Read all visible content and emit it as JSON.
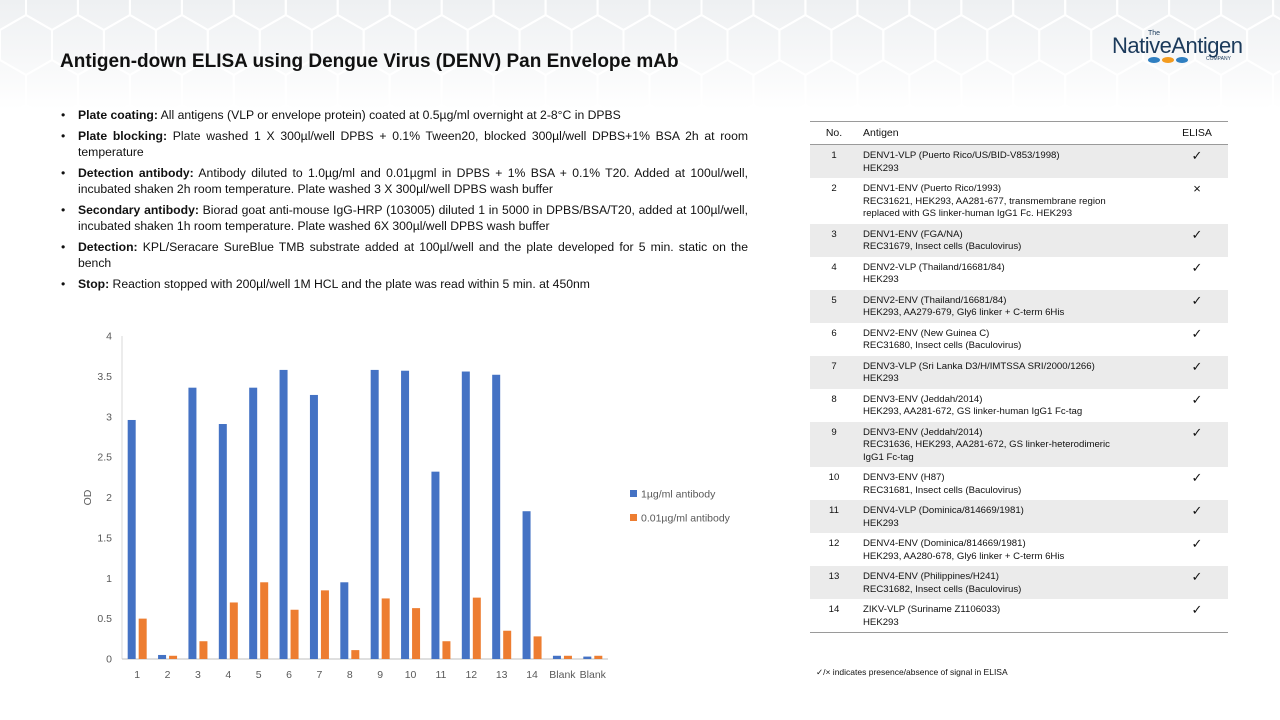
{
  "title": "Antigen-down ELISA using Dengue Virus (DENV) Pan Envelope mAb",
  "logo": {
    "the": "The",
    "name": "NativeAntigen",
    "company": "COMPANY"
  },
  "notes": [
    {
      "label": "Plate coating:",
      "text": "All antigens (VLP or envelope protein) coated at 0.5µg/ml overnight at 2-8°C in DPBS"
    },
    {
      "label": "Plate blocking:",
      "text": "Plate washed 1 X 300µl/well DPBS + 0.1% Tween20, blocked 300µl/well DPBS+1% BSA 2h at room temperature"
    },
    {
      "label": "Detection antibody:",
      "text": "Antibody diluted to 1.0µg/ml and 0.01µgml in DPBS + 1% BSA + 0.1% T20. Added at 100ul/well, incubated shaken 2h room temperature. Plate washed 3 X 300µl/well DPBS wash buffer"
    },
    {
      "label": "Secondary antibody:",
      "text": "Biorad goat anti-mouse IgG-HRP (103005) diluted 1 in 5000 in DPBS/BSA/T20, added at 100µl/well, incubated shaken 1h room temperature. Plate washed 6X 300µl/well DPBS wash buffer"
    },
    {
      "label": "Detection:",
      "text": "KPL/Seracare SureBlue TMB substrate added at 100µl/well and the plate developed for 5 min. static on the bench"
    },
    {
      "label": "Stop:",
      "text": "Reaction stopped with 200µl/well 1M HCL and the plate was read within 5 min. at 450nm"
    }
  ],
  "chart_data": {
    "type": "bar",
    "title": "",
    "xlabel": "",
    "ylabel": "OD",
    "ylim": [
      0,
      4
    ],
    "yticks": [
      0,
      0.5,
      1,
      1.5,
      2,
      2.5,
      3,
      3.5,
      4
    ],
    "ytick_labels": [
      "0",
      "0.5",
      "1",
      "1.5",
      "2",
      "2.5",
      "3",
      "3.5",
      "4"
    ],
    "grid": false,
    "legend_position": "right",
    "categories": [
      "1",
      "2",
      "3",
      "4",
      "5",
      "6",
      "7",
      "8",
      "9",
      "10",
      "11",
      "12",
      "13",
      "14",
      "Blank",
      "Blank"
    ],
    "series": [
      {
        "name": "1µg/ml antibody",
        "color": "#4472C4",
        "values": [
          2.96,
          0.05,
          3.36,
          2.91,
          3.36,
          3.58,
          3.27,
          0.95,
          3.58,
          3.57,
          2.32,
          3.56,
          3.52,
          1.83,
          0.04,
          0.03
        ]
      },
      {
        "name": "0.01µg/ml antibody",
        "color": "#ED7D31",
        "values": [
          0.5,
          0.04,
          0.22,
          0.7,
          0.95,
          0.61,
          0.85,
          0.11,
          0.75,
          0.63,
          0.22,
          0.76,
          0.35,
          0.28,
          0.04,
          0.04
        ]
      }
    ]
  },
  "table": {
    "headers": {
      "no": "No.",
      "antigen": "Antigen",
      "elisa": "ELISA"
    },
    "rows": [
      {
        "no": "1",
        "lines": [
          "DENV1-VLP (Puerto Rico/US/BID-V853/1998)",
          "HEK293"
        ],
        "elisa": "✓"
      },
      {
        "no": "2",
        "lines": [
          "DENV1-ENV (Puerto Rico/1993)",
          "REC31621, HEK293, AA281-677, transmembrane region",
          "replaced with GS linker-human IgG1 Fc. HEK293"
        ],
        "elisa": "×"
      },
      {
        "no": "3",
        "lines": [
          "DENV1-ENV (FGA/NA)",
          "REC31679, Insect cells (Baculovirus)"
        ],
        "elisa": "✓"
      },
      {
        "no": "4",
        "lines": [
          "DENV2-VLP (Thailand/16681/84)",
          "HEK293"
        ],
        "elisa": "✓"
      },
      {
        "no": "5",
        "lines": [
          "DENV2-ENV (Thailand/16681/84)",
          "HEK293, AA279-679, Gly6 linker + C-term 6His"
        ],
        "elisa": "✓"
      },
      {
        "no": "6",
        "lines": [
          "DENV2-ENV (New Guinea C)",
          "REC31680, Insect cells (Baculovirus)"
        ],
        "elisa": "✓"
      },
      {
        "no": "7",
        "lines": [
          "DENV3-VLP (Sri Lanka D3/H/IMTSSA SRI/2000/1266)",
          "HEK293"
        ],
        "elisa": "✓"
      },
      {
        "no": "8",
        "lines": [
          "DENV3-ENV (Jeddah/2014)",
          "HEK293, AA281-672, GS linker-human IgG1 Fc-tag"
        ],
        "elisa": "✓"
      },
      {
        "no": "9",
        "lines": [
          "DENV3-ENV (Jeddah/2014)",
          "REC31636, HEK293, AA281-672, GS linker-heterodimeric",
          "IgG1 Fc-tag"
        ],
        "elisa": "✓"
      },
      {
        "no": "10",
        "lines": [
          "DENV3-ENV (H87)",
          "REC31681, Insect cells (Baculovirus)"
        ],
        "elisa": "✓"
      },
      {
        "no": "11",
        "lines": [
          "DENV4-VLP (Dominica/814669/1981)",
          "HEK293"
        ],
        "elisa": "✓"
      },
      {
        "no": "12",
        "lines": [
          "DENV4-ENV (Dominica/814669/1981)",
          "HEK293, AA280-678, Gly6 linker + C-term 6His"
        ],
        "elisa": "✓"
      },
      {
        "no": "13",
        "lines": [
          "DENV4-ENV (Philippines/H241)",
          "REC31682, Insect cells (Baculovirus)"
        ],
        "elisa": "✓"
      },
      {
        "no": "14",
        "lines": [
          "ZIKV-VLP (Suriname Z1106033)",
          "HEK293"
        ],
        "elisa": "✓"
      }
    ],
    "footnote": "✓/× indicates presence/absence of signal in ELISA"
  }
}
